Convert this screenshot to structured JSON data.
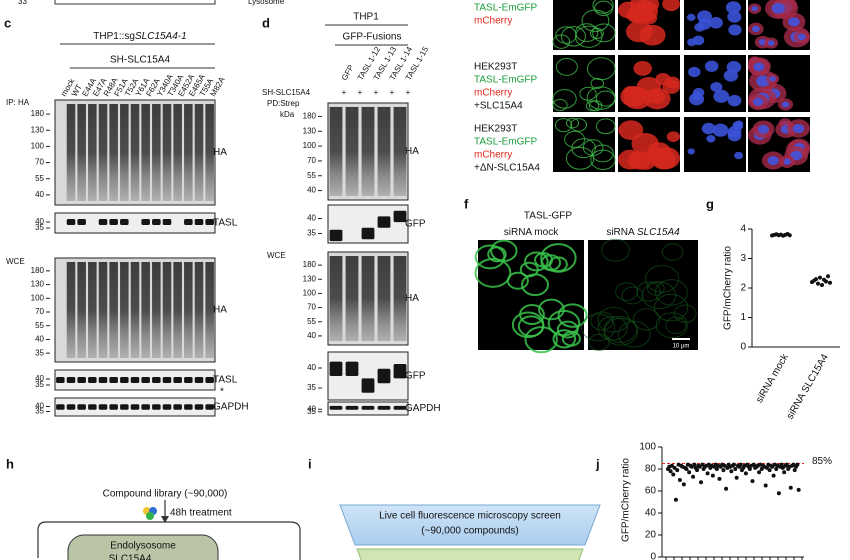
{
  "top_cut": {
    "number": "33",
    "text": "Lysosome"
  },
  "panel_c": {
    "label": "c",
    "cell_line": [
      "THP1::sg",
      "SLC15A4-1"
    ],
    "construct": "SH-SLC15A4",
    "lanes": [
      "mock",
      "WT",
      "E44A",
      "E47A",
      "R48A",
      "F51A",
      "T52A",
      "Y61A",
      "F62A",
      "Y340A",
      "T340A",
      "E452A",
      "E465A",
      "T55A",
      "M82A"
    ],
    "sections": [
      "IP: HA",
      "WCE"
    ],
    "blots": [
      {
        "name": "HA",
        "markers": [
          "180",
          "130",
          "100",
          "70",
          "55",
          "40"
        ]
      },
      {
        "name": "TASL",
        "markers": [
          "40",
          "35"
        ]
      },
      {
        "name": "HA",
        "markers": [
          "180",
          "130",
          "100",
          "70",
          "55",
          "40",
          "35"
        ]
      },
      {
        "name": "TASL",
        "markers": [
          "40",
          "35"
        ]
      },
      {
        "name": "GAPDH",
        "markers": [
          "40",
          "35"
        ]
      }
    ],
    "asterisk": "*"
  },
  "panel_d": {
    "label": "d",
    "cell_line": "THP1",
    "group": "GFP-Fusions",
    "construct": "SH-SLC15A4",
    "signs": [
      "+",
      "+",
      "+",
      "+",
      "+"
    ],
    "lanes": [
      "GFP",
      "TASL 1-12",
      "TASL 1-13",
      "TASL 1-14",
      "TASL 1-15"
    ],
    "sections": [
      "PD:Strep",
      "WCE"
    ],
    "unit": "kDa",
    "blots": [
      {
        "name": "HA",
        "markers": [
          "180",
          "130",
          "100",
          "70",
          "55",
          "40"
        ]
      },
      {
        "name": "GFP",
        "markers": [
          "40",
          "35"
        ]
      },
      {
        "name": "HA",
        "markers": [
          "180",
          "130",
          "100",
          "70",
          "55",
          "40"
        ]
      },
      {
        "name": "GFP",
        "markers": [
          "40",
          "35"
        ]
      },
      {
        "name": "GAPDH",
        "markers": [
          "40",
          "35"
        ]
      }
    ]
  },
  "panel_e": {
    "rows": [
      [
        {
          "text": "TASL-EmGFP",
          "color": "#1a9e3a"
        },
        {
          "text": "mCherry",
          "color": "#e0261b"
        }
      ],
      [
        {
          "text": "HEK293T",
          "color": "#111111"
        },
        {
          "text": "TASL-EmGFP",
          "color": "#1a9e3a"
        },
        {
          "text": "mCherry",
          "color": "#e0261b"
        },
        {
          "text": "+SLC15A4",
          "color": "#111111"
        }
      ],
      [
        {
          "text": "HEK293T",
          "color": "#111111"
        },
        {
          "text": "TASL-EmGFP",
          "color": "#1a9e3a"
        },
        {
          "text": "mCherry",
          "color": "#e0261b"
        },
        {
          "text": "+ΔN-SLC15A4",
          "color": "#111111"
        }
      ]
    ]
  },
  "panel_f": {
    "label": "f",
    "title": "TASL-GFP",
    "conditions": [
      [
        "siRNA mock",
        ""
      ],
      [
        "siRNA ",
        "SLC15A4"
      ]
    ],
    "scale_bar": "10 μm"
  },
  "panel_g": {
    "label": "g",
    "ylabel": "GFP/mCherry ratio",
    "ylim": [
      0,
      4
    ],
    "yticks": [
      0,
      1,
      2,
      3,
      4
    ],
    "categories": [
      "siRNA mock",
      "siRNA SLC15A4"
    ],
    "series": [
      {
        "values": [
          3.78,
          3.8,
          3.82,
          3.79,
          3.81,
          3.77,
          3.8,
          3.83,
          3.79
        ]
      },
      {
        "values": [
          2.2,
          2.25,
          2.3,
          2.15,
          2.35,
          2.1,
          2.28,
          2.22,
          2.4,
          2.18
        ]
      }
    ],
    "color": "#111111"
  },
  "panel_h": {
    "label": "h",
    "library": "Compound library (~90,000)",
    "treatment": "48h treatment",
    "compartment": "Endolysosome",
    "protein": "SLC15A4"
  },
  "panel_i": {
    "label": "i",
    "steps": [
      [
        "Live cell fluorescence microscopy screen",
        "(~90,000 compounds)"
      ]
    ]
  },
  "panel_j": {
    "label": "j",
    "ylabel": "GFP/mCherry ratio",
    "ylim": [
      0,
      100
    ],
    "yticks": [
      0,
      20,
      40,
      60,
      80,
      100
    ],
    "threshold": {
      "value": 85,
      "label": "85%"
    },
    "color": "#111111",
    "values": [
      80,
      82,
      78,
      83,
      75,
      81,
      52,
      79,
      84,
      70,
      83,
      82,
      66,
      81,
      80,
      84,
      77,
      83,
      82,
      73,
      84,
      81,
      79,
      83,
      82,
      68,
      84,
      80,
      82,
      83,
      76,
      84,
      81,
      83,
      74,
      82,
      84,
      80,
      83,
      71,
      82,
      84,
      79,
      83,
      62,
      81,
      84,
      82,
      78,
      83,
      84,
      80,
      72,
      83,
      82,
      84,
      79,
      81,
      83,
      76,
      84,
      82,
      80,
      83,
      69,
      84,
      81,
      82,
      83,
      77,
      84,
      80,
      83,
      82,
      65,
      81,
      84,
      79,
      83,
      82,
      74,
      84,
      80,
      83,
      58,
      82,
      84,
      81,
      77,
      83,
      84,
      80,
      82,
      63,
      83,
      84,
      79,
      82,
      84,
      61
    ]
  }
}
